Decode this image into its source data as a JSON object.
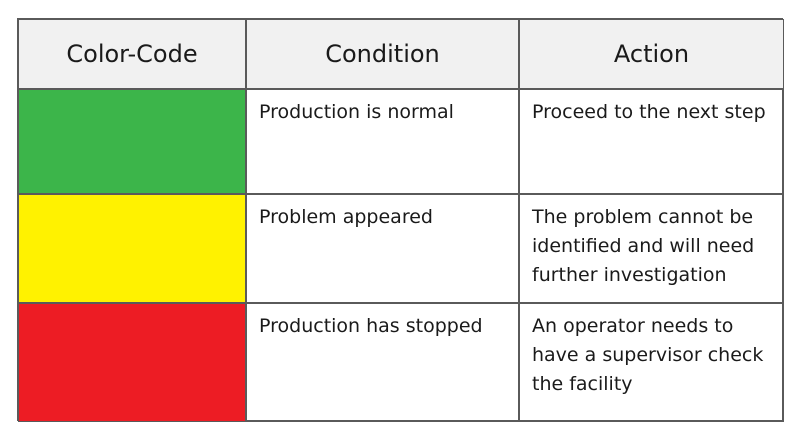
{
  "table": {
    "header": [
      "Color-Code",
      "Condition",
      "Action"
    ],
    "rows": [
      {
        "color": "#3cb54a",
        "condition": "Production is normal",
        "action": [
          "Proceed to the next step"
        ]
      },
      {
        "color": "#fff200",
        "condition": "Problem appeared",
        "action": [
          "The problem cannot be",
          "identified and will need",
          "further investigation"
        ]
      },
      {
        "color": "#ed1c24",
        "condition": "Production has stopped",
        "action": [
          "An operator needs to",
          "have a supervisor check",
          "the facility"
        ]
      }
    ]
  }
}
